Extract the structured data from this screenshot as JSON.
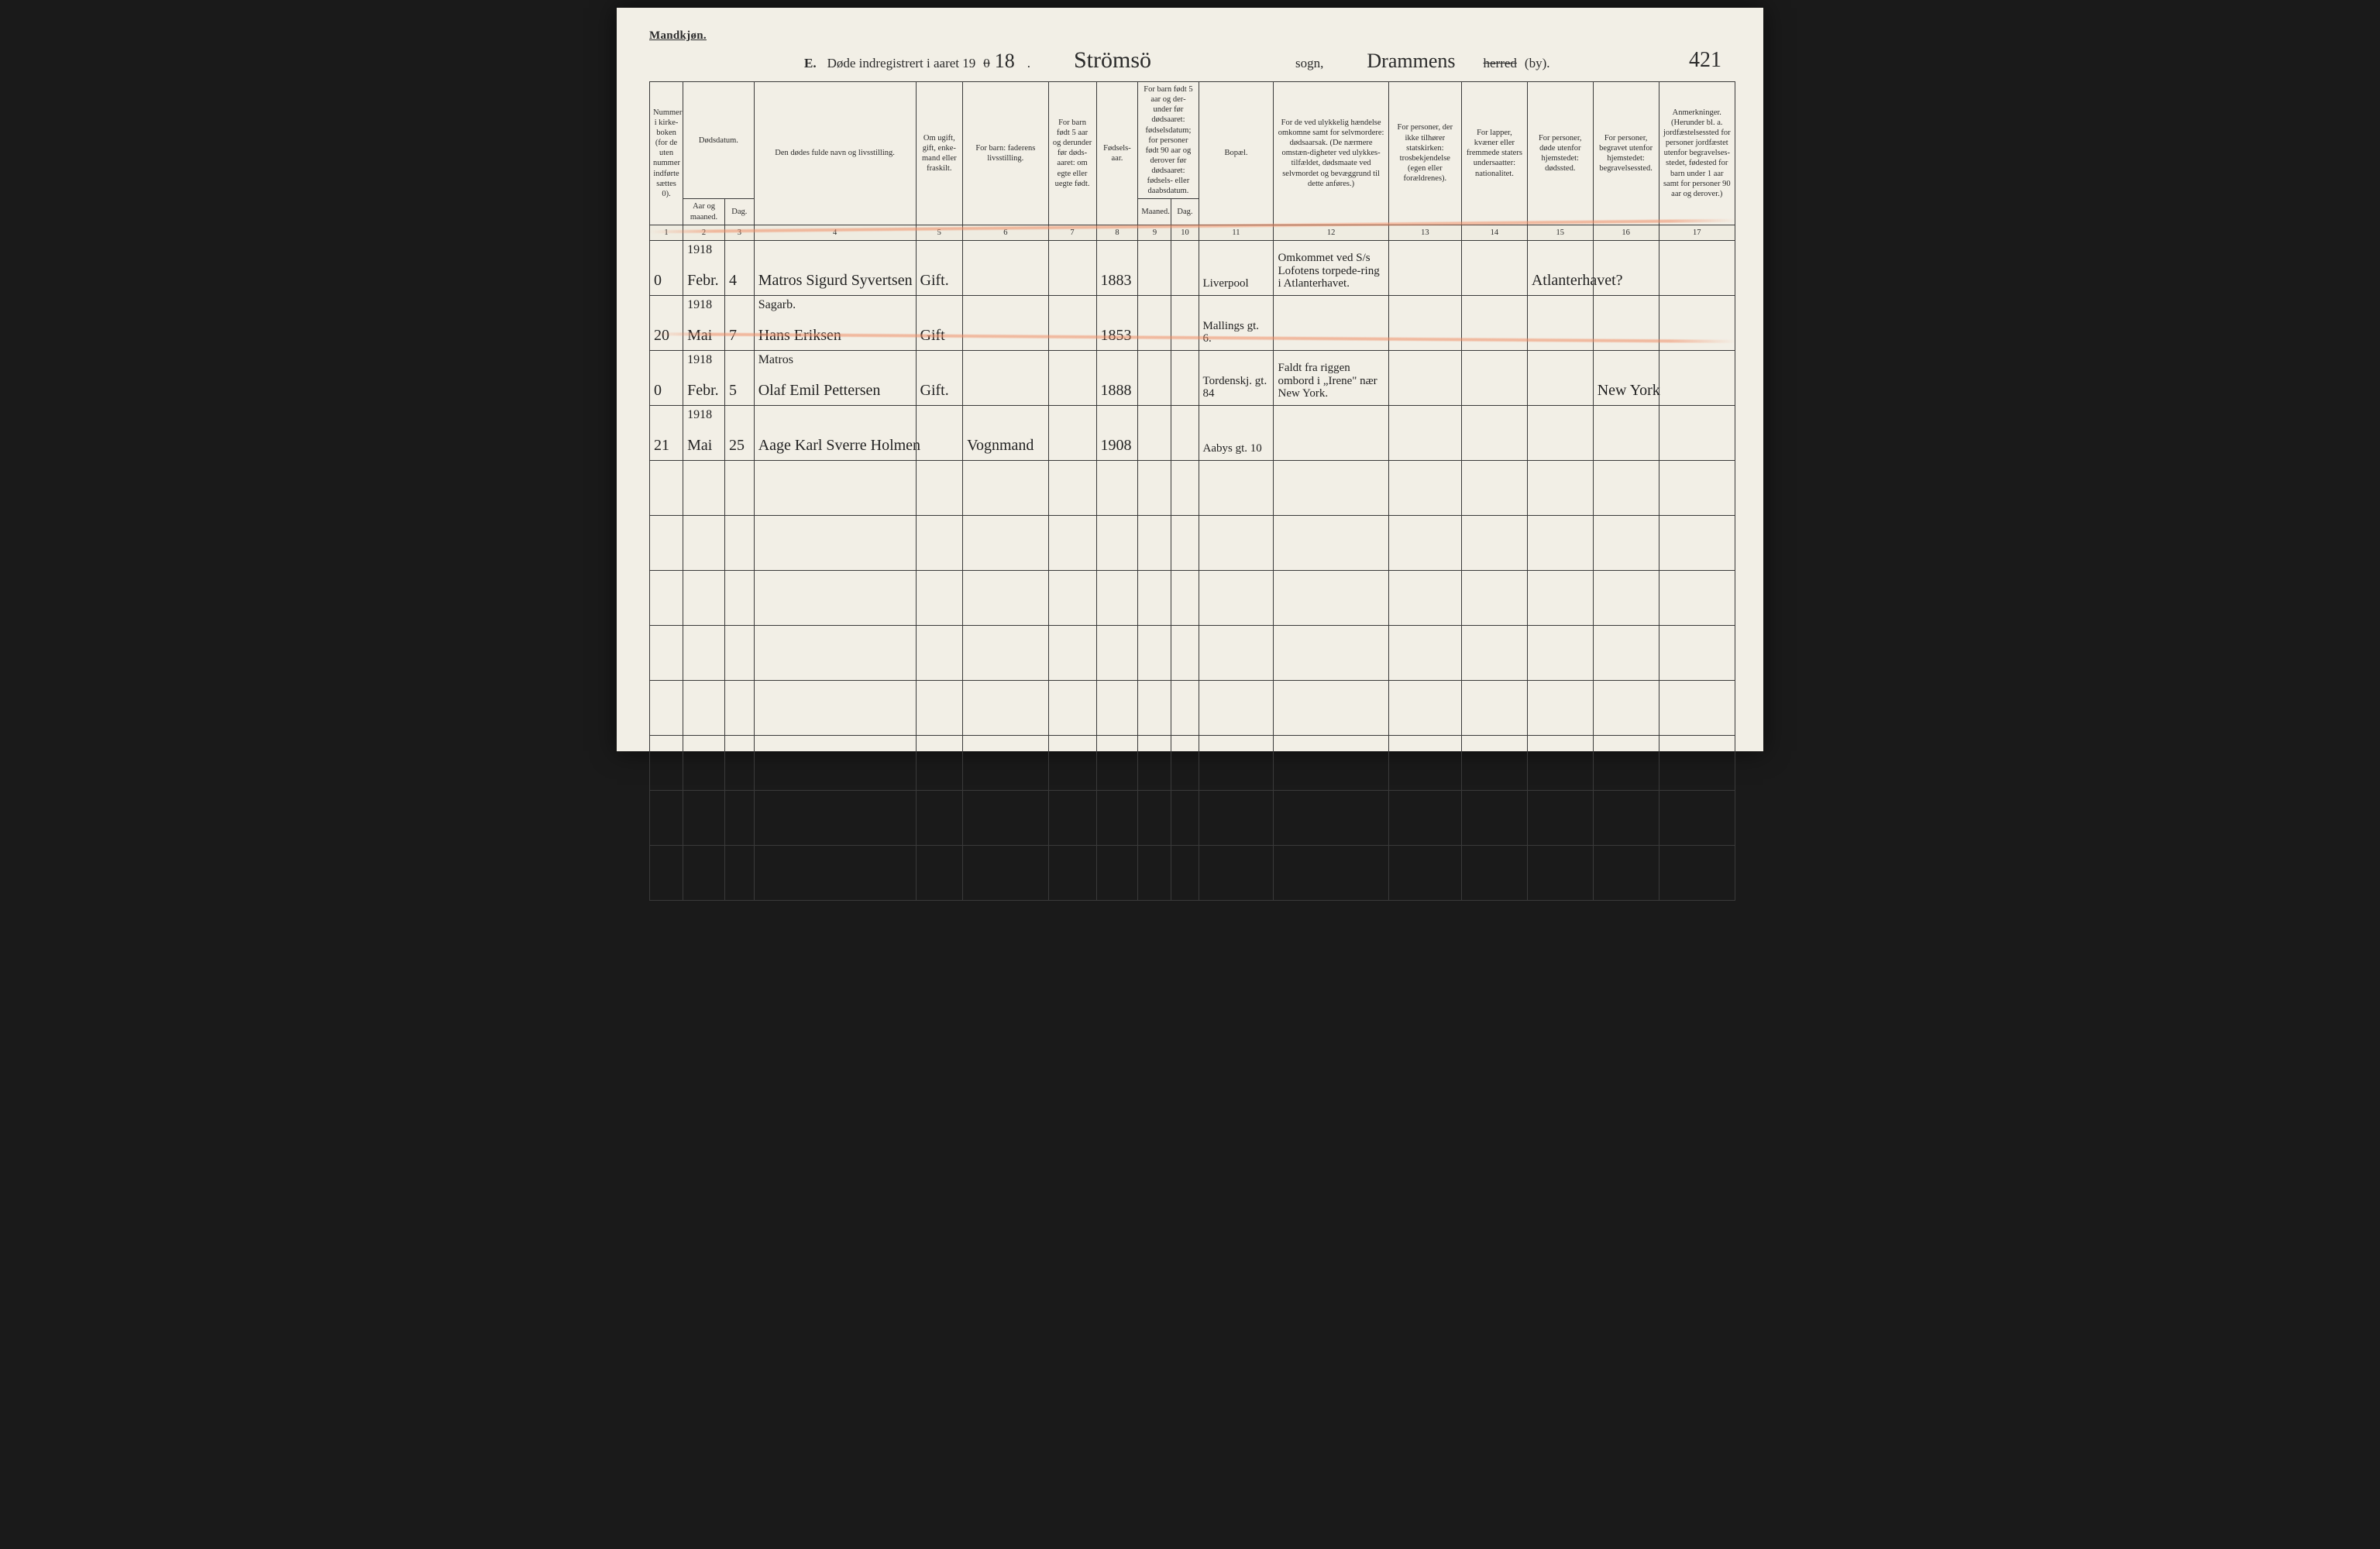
{
  "header": {
    "gender_label": "Mandkjøn.",
    "section_letter": "E.",
    "register_title_prefix": "Døde indregistrert i aaret 19",
    "year_handwritten": "18",
    "year_strike_digit": "0",
    "period_after_year": ".",
    "sogn_handwritten": "Strömsö",
    "sogn_label": "sogn,",
    "herred_handwritten": "Drammens",
    "herred_strikethrough": "herred",
    "by_label": "(by).",
    "page_number_handwritten": "421"
  },
  "columns": {
    "col1": "Nummer i kirke-boken (for de uten nummer indførte sættes 0).",
    "col2_group": "Dødsdatum.",
    "col2a": "Aar og maaned.",
    "col2b": "Dag.",
    "col4": "Den dødes fulde navn og livsstilling.",
    "col5": "Om ugift, gift, enke-mand eller fraskilt.",
    "col6": "For barn: faderens livsstilling.",
    "col7": "For barn født 5 aar og derunder før døds-aaret: om egte eller uegte født.",
    "col8": "Fødsels-aar.",
    "col9_10_group": "For barn født 5 aar og der-under før dødsaaret: fødselsdatum; for personer født 90 aar og derover før dødsaaret: fødsels- eller daabsdatum.",
    "col9": "Maaned.",
    "col10": "Dag.",
    "col11": "Bopæl.",
    "col12": "For de ved ulykkelig hændelse omkomne samt for selvmordere: dødsaarsak. (De nærmere omstæn-digheter ved ulykkes-tilfældet, dødsmaate ved selvmordet og bevæggrund til dette anføres.)",
    "col13": "For personer, der ikke tilhører statskirken: trosbekjendelse (egen eller forældrenes).",
    "col14": "For lapper, kvæner eller fremmede staters undersaatter: nationalitet.",
    "col15": "For personer, døde utenfor hjemstedet: dødssted.",
    "col16": "For personer, begravet utenfor hjemstedet: begravelsessted.",
    "col17": "Anmerkninger. (Herunder bl. a. jordfæstelsessted for personer jordfæstet utenfor begravelses-stedet, fødested for barn under 1 aar samt for personer 90 aar og derover.)"
  },
  "colnums": [
    "1",
    "2",
    "3",
    "4",
    "5",
    "6",
    "7",
    "8",
    "9",
    "10",
    "11",
    "12",
    "13",
    "14",
    "15",
    "16",
    "17"
  ],
  "rows": [
    {
      "num": "0",
      "year_month_pre": "1918",
      "year_month": "Febr.",
      "day": "4",
      "name_pre": "",
      "name": "Matros Sigurd Syvertsen",
      "status": "Gift.",
      "father": "",
      "legit": "",
      "birthyear": "1883",
      "bm": "",
      "bd": "",
      "residence": "Liverpool",
      "cause": "Omkommet ved S/s Lofotens torpede-ring i Atlanterhavet.",
      "faith": "",
      "nat": "",
      "deathplace": "Atlanterhavet?",
      "burial": "",
      "notes": ""
    },
    {
      "num": "20",
      "year_month_pre": "1918",
      "year_month": "Mai",
      "day": "7",
      "name_pre": "Sagarb.",
      "name": "Hans Eriksen",
      "status": "Gift",
      "father": "",
      "legit": "",
      "birthyear": "1853",
      "bm": "",
      "bd": "",
      "residence": "Mallings gt. 6.",
      "cause": "",
      "faith": "",
      "nat": "",
      "deathplace": "",
      "burial": "",
      "notes": ""
    },
    {
      "num": "0",
      "year_month_pre": "1918",
      "year_month": "Febr.",
      "day": "5",
      "name_pre": "Matros",
      "name": "Olaf Emil Pettersen",
      "status": "Gift.",
      "father": "",
      "legit": "",
      "birthyear": "1888",
      "bm": "",
      "bd": "",
      "residence": "Tordenskj. gt. 84",
      "cause": "Faldt fra riggen ombord i „Irene\" nær New York.",
      "faith": "",
      "nat": "",
      "deathplace": "",
      "burial": "New York",
      "notes": ""
    },
    {
      "num": "21",
      "year_month_pre": "1918",
      "year_month": "Mai",
      "day": "25",
      "name_pre": "",
      "name": "Aage Karl Sverre Holmen",
      "status": "",
      "father": "Vognmand",
      "legit": "",
      "birthyear": "1908",
      "bm": "",
      "bd": "",
      "residence": "Aabys gt. 10",
      "cause": "",
      "faith": "",
      "nat": "",
      "deathplace": "",
      "burial": "",
      "notes": ""
    }
  ],
  "empty_rows": 8,
  "styling": {
    "page_bg": "#f2efe6",
    "border_color": "#3a3a3a",
    "hand_color": "#222222",
    "redline_color": "#f08c64"
  },
  "column_widths_pct": [
    3.2,
    4.0,
    2.8,
    15.5,
    4.5,
    8.2,
    4.6,
    4.0,
    3.2,
    2.6,
    7.2,
    11.0,
    7.0,
    6.3,
    6.3,
    6.3,
    7.3
  ]
}
